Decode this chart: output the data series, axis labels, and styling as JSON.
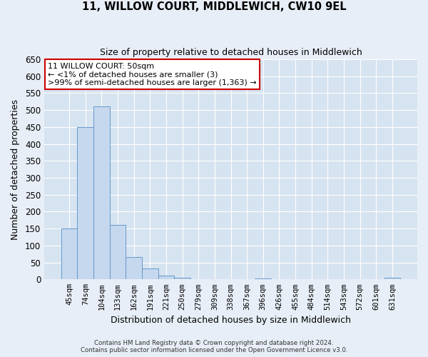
{
  "title": "11, WILLOW COURT, MIDDLEWICH, CW10 9EL",
  "subtitle": "Size of property relative to detached houses in Middlewich",
  "xlabel": "Distribution of detached houses by size in Middlewich",
  "ylabel": "Number of detached properties",
  "categories": [
    "45sqm",
    "74sqm",
    "104sqm",
    "133sqm",
    "162sqm",
    "191sqm",
    "221sqm",
    "250sqm",
    "279sqm",
    "309sqm",
    "338sqm",
    "367sqm",
    "396sqm",
    "426sqm",
    "455sqm",
    "484sqm",
    "514sqm",
    "543sqm",
    "572sqm",
    "601sqm",
    "631sqm"
  ],
  "values": [
    150,
    450,
    510,
    160,
    67,
    32,
    12,
    5,
    0,
    0,
    0,
    0,
    3,
    0,
    0,
    0,
    0,
    0,
    0,
    0,
    5
  ],
  "bar_color": "#c5d8ee",
  "bar_edge_color": "#6699cc",
  "ylim": [
    0,
    650
  ],
  "yticks": [
    0,
    50,
    100,
    150,
    200,
    250,
    300,
    350,
    400,
    450,
    500,
    550,
    600,
    650
  ],
  "annotation_box_text_line1": "11 WILLOW COURT: 50sqm",
  "annotation_box_text_line2": "← <1% of detached houses are smaller (3)",
  "annotation_box_text_line3": ">99% of semi-detached houses are larger (1,363) →",
  "annotation_box_color": "#ffffff",
  "annotation_box_edge_color": "#cc0000",
  "footer_line1": "Contains HM Land Registry data © Crown copyright and database right 2024.",
  "footer_line2": "Contains public sector information licensed under the Open Government Licence v3.0.",
  "background_color": "#e8eef7",
  "plot_bg_color": "#d6e3f0"
}
